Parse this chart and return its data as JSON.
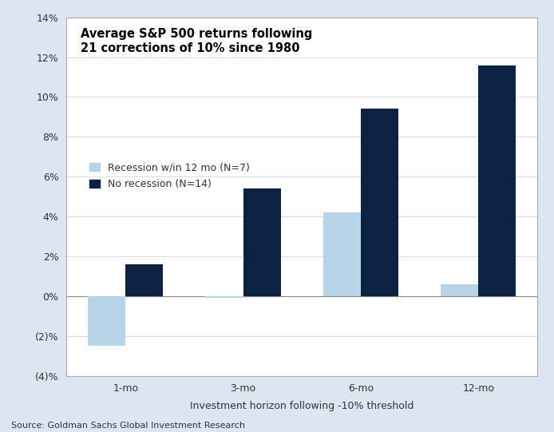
{
  "title_line1": "Average S&P 500 returns following",
  "title_line2": "21 corrections of 10% since 1980",
  "categories": [
    "1-mo",
    "3-mo",
    "6-mo",
    "12-mo"
  ],
  "recession_values": [
    -2.5,
    -0.1,
    4.2,
    0.6
  ],
  "no_recession_values": [
    1.6,
    5.4,
    9.4,
    11.6
  ],
  "recession_color": "#b8d4e8",
  "no_recession_color": "#0d2240",
  "recession_label": "Recession w/in 12 mo (N=7)",
  "no_recession_label": "No recession (N=14)",
  "xlabel": "Investment horizon following -10% threshold",
  "ylim": [
    -4,
    14
  ],
  "yticks": [
    -4,
    -2,
    0,
    2,
    4,
    6,
    8,
    10,
    12,
    14
  ],
  "ytick_labels": [
    "(4)%",
    "(2)%",
    "0%",
    "2%",
    "4%",
    "6%",
    "8%",
    "10%",
    "12%",
    "14%"
  ],
  "source_text": "Source: Goldman Sachs Global Investment Research",
  "fig_bg_color": "#dce6f1",
  "plot_bg_color": "#ffffff",
  "bar_width": 0.32
}
